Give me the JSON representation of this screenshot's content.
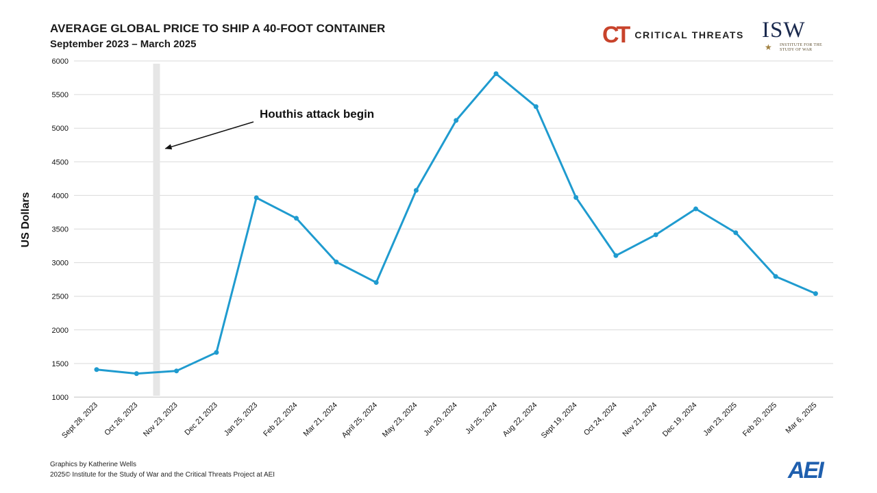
{
  "header": {
    "title": "AVERAGE GLOBAL PRICE TO SHIP A 40-FOOT CONTAINER",
    "subtitle": "September 2023 – March 2025"
  },
  "logos": {
    "critical_threats": {
      "mark": "CT",
      "text": "CRITICAL THREATS"
    },
    "isw": {
      "text": "ISW",
      "subtext": "INSTITUTE FOR THE STUDY OF WAR"
    },
    "aei": {
      "text": "AEI"
    }
  },
  "footer": {
    "credit": "Graphics by Katherine Wells",
    "copyright": "2025© Institute for the Study of War and the Critical Threats Project at AEI"
  },
  "colors": {
    "series": "#1f9bcf",
    "grid": "#d9d9d9",
    "marker_band": "#e6e6e6",
    "ct_red": "#c8432b",
    "isw_navy": "#1b2a4e",
    "aei_blue": "#1f5fae"
  },
  "chart_data": {
    "type": "line",
    "title": "AVERAGE GLOBAL PRICE TO SHIP A 40-FOOT CONTAINER",
    "subtitle": "September 2023 – March 2025",
    "xlabel": "",
    "ylabel": "US Dollars",
    "ylim": [
      1000,
      6000
    ],
    "yticks": [
      1000,
      1500,
      2000,
      2500,
      3000,
      3500,
      4000,
      4500,
      5000,
      5500,
      6000
    ],
    "grid": true,
    "categories": [
      "Sept 28, 2023",
      "Oct 26, 2023",
      "Nov 23, 2023",
      "Dec 21 2023",
      "Jan 25, 2023",
      "Feb 22, 2024",
      "Mar 21, 2024",
      "April 25, 2024",
      "May 23, 2024",
      "Jun 20, 2024",
      "Jul 25, 2024",
      "Aug 22, 2024",
      "Sept 19, 2024",
      "Oct 24, 2024",
      "Nov 21, 2024",
      "Dec 19, 2024",
      "Jan 23, 2025",
      "Feb 20, 2025",
      "Mar 6, 2025"
    ],
    "values": [
      1410,
      1350,
      1390,
      1665,
      3965,
      3660,
      3010,
      2705,
      4075,
      5115,
      5810,
      5320,
      3970,
      3105,
      3415,
      3800,
      3445,
      2795,
      2540
    ],
    "annotation": {
      "text": "Houthis attack begin",
      "band_between_categories": [
        "Oct 26, 2023",
        "Nov 23, 2023"
      ]
    }
  }
}
